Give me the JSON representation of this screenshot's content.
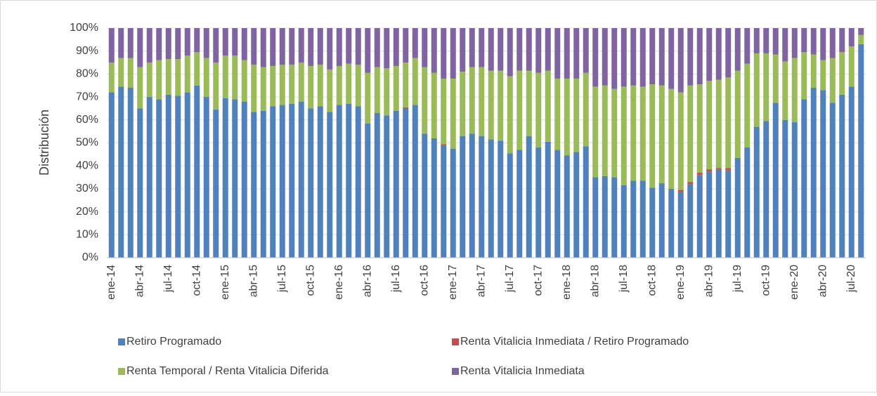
{
  "chart_data": {
    "type": "stacked_bar",
    "y_label": "Distribución",
    "categories": [
      "ene-14",
      null,
      null,
      "abr-14",
      null,
      null,
      "jul-14",
      null,
      null,
      "oct-14",
      null,
      null,
      "ene-15",
      null,
      null,
      "abr-15",
      null,
      null,
      "jul-15",
      null,
      null,
      "oct-15",
      null,
      null,
      "ene-16",
      null,
      null,
      "abr-16",
      null,
      null,
      "jul-16",
      null,
      null,
      "oct-16",
      null,
      null,
      "ene-17",
      null,
      null,
      "abr-17",
      null,
      null,
      "jul-17",
      null,
      null,
      "oct-17",
      null,
      null,
      "ene-18",
      null,
      null,
      "abr-18",
      null,
      null,
      "jul-18",
      null,
      null,
      "oct-18",
      null,
      null,
      "ene-19",
      null,
      null,
      "abr-19",
      null,
      null,
      "jul-19",
      null,
      null,
      "oct-19",
      null,
      null,
      "ene-20",
      null,
      null,
      "abr-20",
      null,
      null,
      "jul-20",
      null
    ],
    "series": [
      {
        "name": "Retiro Programado",
        "color": "#4f81bd",
        "values": [
          72,
          74.5,
          74,
          65,
          70,
          69,
          71,
          70.5,
          72,
          75,
          70,
          64.5,
          69.5,
          69,
          68,
          63.5,
          64,
          66,
          66.5,
          67,
          68,
          65,
          66,
          63.5,
          66.5,
          67,
          66,
          58.5,
          63,
          62,
          64,
          65,
          66.5,
          54,
          52,
          49,
          47.5,
          53,
          54,
          53,
          51.5,
          51,
          45.5,
          47,
          53,
          48,
          50.5,
          47,
          44.5,
          46,
          48.5,
          35,
          35.5,
          35,
          31.5,
          33.5,
          33.5,
          30.5,
          32.5,
          30,
          28.5,
          32,
          36,
          37.5,
          38.5,
          38,
          43.5,
          48,
          57,
          59.5,
          67.5,
          60,
          59,
          69,
          74,
          73,
          67.5,
          71,
          74.5,
          93
        ]
      },
      {
        "name": "Renta Vitalicia Inmediata / Retiro Programado",
        "color": "#c0504d",
        "values": [
          0,
          0,
          0,
          0,
          0,
          0,
          0,
          0,
          0,
          0,
          0,
          0,
          0,
          0,
          0,
          0,
          0,
          0,
          0,
          0,
          0,
          0,
          0,
          0,
          0,
          0,
          0,
          0,
          0,
          0,
          0,
          0.5,
          0,
          0,
          0,
          0.5,
          0,
          0,
          0,
          0,
          0,
          0,
          0,
          0,
          0,
          0,
          0,
          0,
          0,
          0,
          0,
          0,
          0,
          0,
          0,
          0,
          0,
          0,
          0,
          0,
          1,
          1,
          1,
          1,
          0.5,
          1,
          0,
          0,
          0,
          0,
          0,
          0,
          0,
          0,
          0,
          0,
          0,
          0,
          0,
          0
        ]
      },
      {
        "name": "Renta Temporal / Renta Vitalicia Diferida",
        "color": "#9bbb59",
        "values": [
          13,
          12.5,
          13,
          18,
          15,
          17,
          15.5,
          16,
          16,
          14.5,
          17,
          20.5,
          18.5,
          19,
          18,
          20.5,
          19,
          17.5,
          17.5,
          17,
          17,
          18.5,
          18,
          18.5,
          17,
          17.5,
          18,
          22,
          20,
          20.5,
          19.5,
          19.5,
          20.5,
          29,
          28.5,
          28.5,
          30.5,
          28,
          29,
          30,
          30,
          30.5,
          33.5,
          34.5,
          28.5,
          32.5,
          31,
          31,
          33.5,
          32,
          32,
          39.5,
          39.5,
          38.5,
          43,
          41.5,
          41,
          45,
          42.5,
          43.5,
          42.5,
          42,
          38.5,
          38.5,
          38.5,
          39.5,
          38,
          36.5,
          32,
          29.5,
          21,
          25.5,
          28,
          20.5,
          14.5,
          13,
          19.5,
          18.5,
          17.5,
          4
        ]
      },
      {
        "name": "Renta Vitalicia Inmediata",
        "color": "#8064a2",
        "values": [
          15,
          13,
          13,
          17,
          15,
          14,
          13.5,
          13.5,
          12,
          10.5,
          13,
          15,
          12,
          12,
          14,
          16,
          17,
          16.5,
          16,
          16,
          15,
          16.5,
          16,
          18,
          16.5,
          15.5,
          16,
          19.5,
          17,
          17.5,
          16.5,
          15,
          13,
          17,
          19.5,
          22,
          22,
          19,
          17,
          17,
          18.5,
          18.5,
          21,
          18.5,
          18.5,
          19.5,
          18.5,
          22,
          22,
          22,
          19.5,
          25.5,
          25,
          26.5,
          25.5,
          25,
          25.5,
          24.5,
          25,
          26.5,
          28,
          25,
          24.5,
          23,
          22.5,
          21.5,
          18.5,
          15.5,
          11,
          11,
          11.5,
          14.5,
          13,
          10.5,
          11.5,
          14,
          13,
          10.5,
          8,
          3
        ]
      }
    ],
    "ylim": [
      0,
      100
    ],
    "yticks": [
      {
        "value": 0,
        "label": "0%"
      },
      {
        "value": 10,
        "label": "10%"
      },
      {
        "value": 20,
        "label": "20%"
      },
      {
        "value": 30,
        "label": "30%"
      },
      {
        "value": 40,
        "label": "40%"
      },
      {
        "value": 50,
        "label": "50%"
      },
      {
        "value": 60,
        "label": "60%"
      },
      {
        "value": 70,
        "label": "70%"
      },
      {
        "value": 80,
        "label": "80%"
      },
      {
        "value": 90,
        "label": "90%"
      },
      {
        "value": 100,
        "label": "100%"
      }
    ],
    "grid": true
  }
}
